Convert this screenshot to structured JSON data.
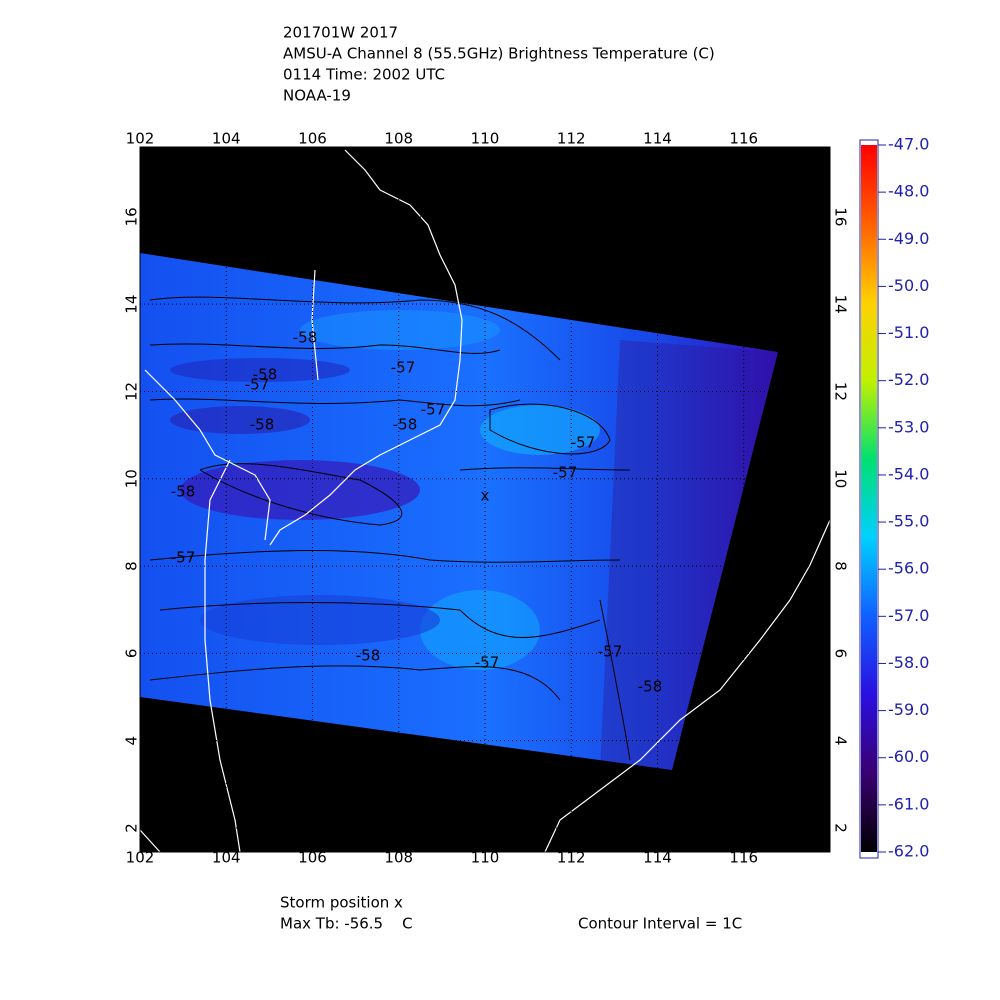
{
  "header": {
    "lines": [
      "201701W 2017",
      "AMSU-A Channel 8 (55.5GHz) Brightness Temperature (C)",
      "0114 Time: 2002 UTC",
      "NOAA-19"
    ]
  },
  "map": {
    "xlim": [
      102,
      118
    ],
    "ylim": [
      1.45,
      17.6
    ],
    "xticks": [
      102,
      104,
      106,
      108,
      110,
      112,
      114,
      116
    ],
    "yticks": [
      2,
      4,
      6,
      8,
      10,
      12,
      14,
      16
    ],
    "grid": true,
    "storm_marker": "x",
    "storm_position": [
      110,
      9.6
    ],
    "contour_labels": [
      "-58",
      "-58",
      "-57",
      "-57",
      "-57",
      "-58",
      "-58",
      "-57",
      "-57",
      "-58",
      "-57",
      "-58",
      "-57",
      "-57",
      "-58"
    ]
  },
  "colorbar": {
    "lim": [
      -62,
      -47
    ],
    "colors": [
      "#000000",
      "#3a0070",
      "#2a10e0",
      "#1060ff",
      "#00d0ff",
      "#00e070",
      "#c0f000",
      "#ffd000",
      "#ff6000",
      "#ff0000"
    ],
    "ticks": [
      {
        "value": -47,
        "label": "-47.0"
      },
      {
        "value": -48,
        "label": "-48.0"
      },
      {
        "value": -49,
        "label": "-49.0"
      },
      {
        "value": -50,
        "label": "-50.0"
      },
      {
        "value": -51,
        "label": "-51.0"
      },
      {
        "value": -52,
        "label": "-52.0"
      },
      {
        "value": -53,
        "label": "-53.0"
      },
      {
        "value": -54,
        "label": "-54.0"
      },
      {
        "value": -55,
        "label": "-55.0"
      },
      {
        "value": -56,
        "label": "-56.0"
      },
      {
        "value": -57,
        "label": "-57.0"
      },
      {
        "value": -58,
        "label": "-58.0"
      },
      {
        "value": -59,
        "label": "-59.0"
      },
      {
        "value": -60,
        "label": "-60.0"
      },
      {
        "value": -61,
        "label": "-61.0"
      },
      {
        "value": -62,
        "label": "-62.0"
      }
    ]
  },
  "footer": {
    "storm_position": "Storm position x",
    "max_tb": "Max Tb: -56.5    C",
    "contour_interval": "Contour Interval = 1C"
  }
}
